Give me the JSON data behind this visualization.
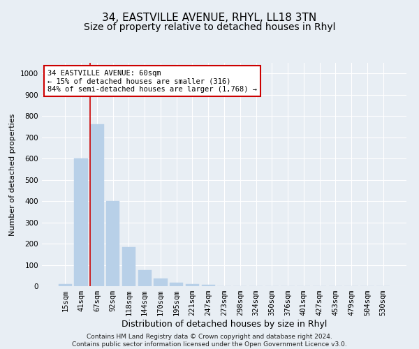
{
  "title": "34, EASTVILLE AVENUE, RHYL, LL18 3TN",
  "subtitle": "Size of property relative to detached houses in Rhyl",
  "xlabel": "Distribution of detached houses by size in Rhyl",
  "ylabel": "Number of detached properties",
  "categories": [
    "15sqm",
    "41sqm",
    "67sqm",
    "92sqm",
    "118sqm",
    "144sqm",
    "170sqm",
    "195sqm",
    "221sqm",
    "247sqm",
    "273sqm",
    "298sqm",
    "324sqm",
    "350sqm",
    "376sqm",
    "401sqm",
    "427sqm",
    "453sqm",
    "479sqm",
    "504sqm",
    "530sqm"
  ],
  "values": [
    10,
    600,
    760,
    400,
    185,
    75,
    35,
    15,
    10,
    8,
    0,
    0,
    0,
    0,
    0,
    0,
    0,
    0,
    0,
    0,
    0
  ],
  "bar_color": "#b8d0e8",
  "bar_edge_color": "#b8d0e8",
  "marker_line_index": 2,
  "marker_line_color": "#cc0000",
  "ylim": [
    0,
    1050
  ],
  "yticks": [
    0,
    100,
    200,
    300,
    400,
    500,
    600,
    700,
    800,
    900,
    1000
  ],
  "annotation_text": "34 EASTVILLE AVENUE: 60sqm\n← 15% of detached houses are smaller (316)\n84% of semi-detached houses are larger (1,768) →",
  "annotation_box_color": "#ffffff",
  "annotation_box_edge": "#cc0000",
  "background_color": "#e8eef4",
  "plot_bg_color": "#e8eef4",
  "grid_color": "#ffffff",
  "footer": "Contains HM Land Registry data © Crown copyright and database right 2024.\nContains public sector information licensed under the Open Government Licence v3.0.",
  "title_fontsize": 11,
  "subtitle_fontsize": 10,
  "xlabel_fontsize": 9,
  "ylabel_fontsize": 8,
  "tick_fontsize": 7.5,
  "annotation_fontsize": 7.5,
  "footer_fontsize": 6.5
}
